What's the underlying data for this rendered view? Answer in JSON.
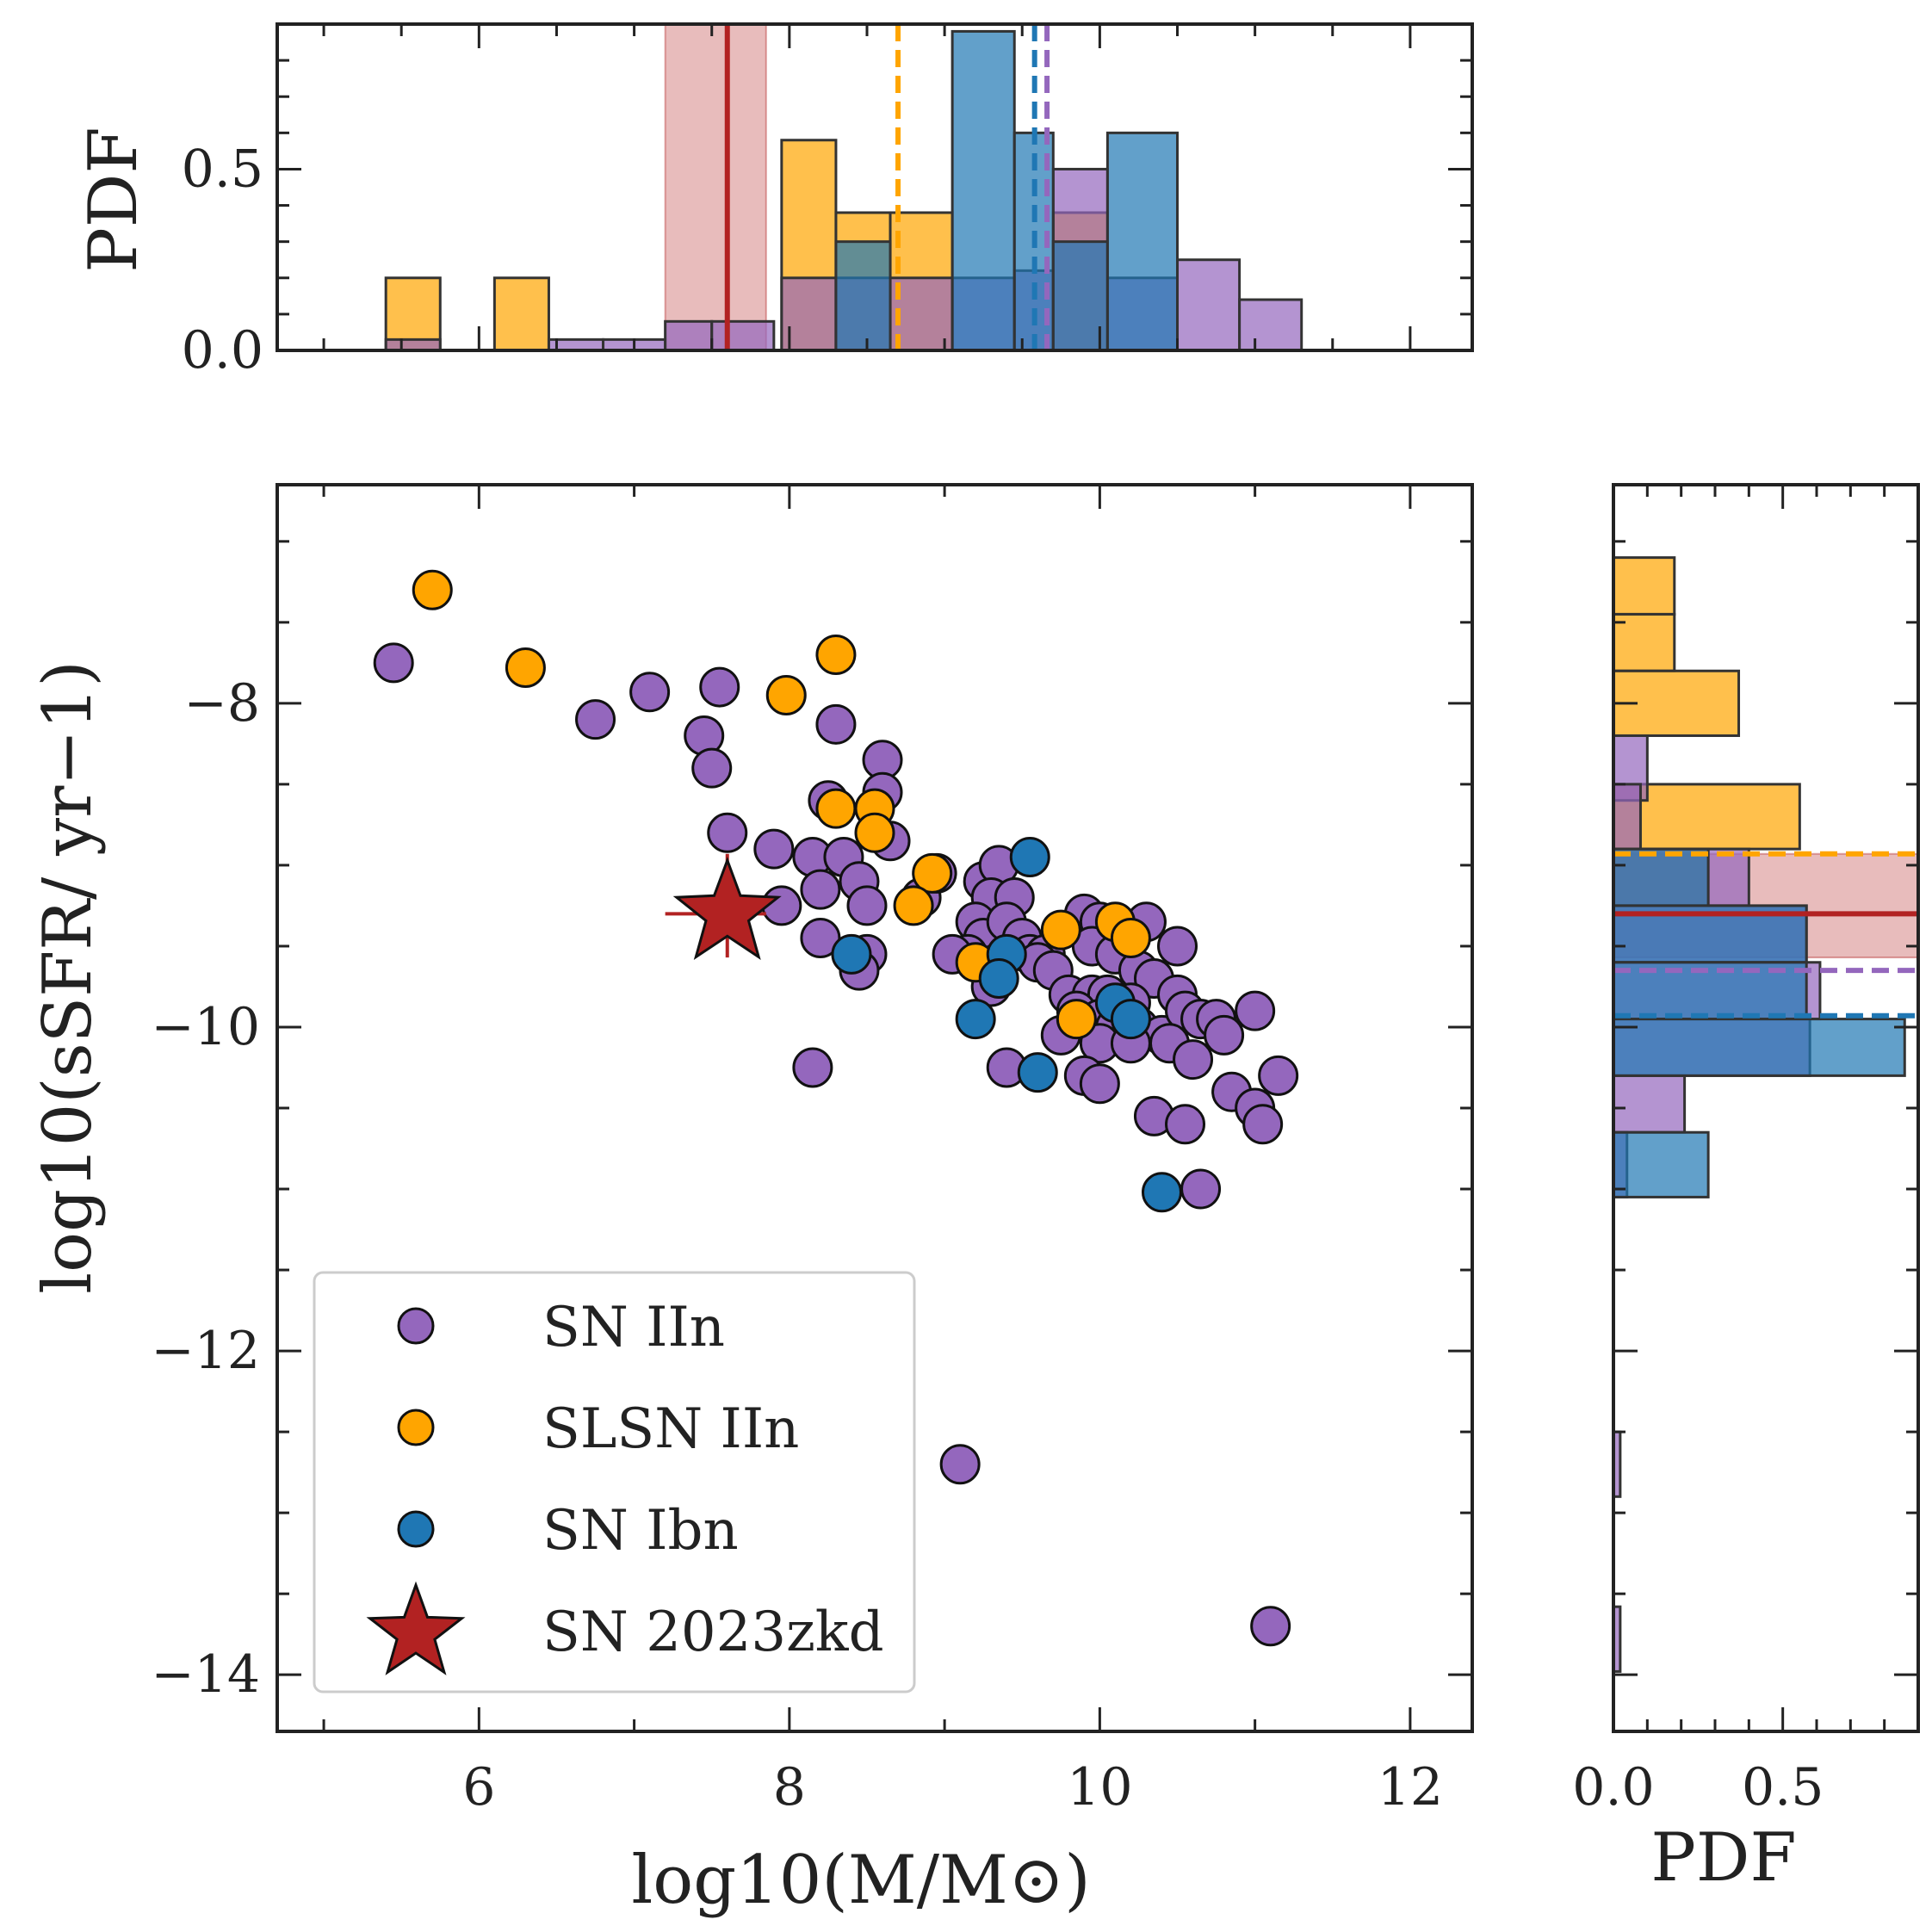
{
  "chart_data": {
    "type": "scatter",
    "title": "",
    "xlabel": "log10(M/M⊙)",
    "ylabel": "log10(sSFR/ yr−1)",
    "xlim": [
      4.7,
      12.4
    ],
    "ylim": [
      -14.35,
      -6.65
    ],
    "xticks": [
      6,
      8,
      10,
      12
    ],
    "xtick_labels": [
      "6",
      "8",
      "10",
      "12"
    ],
    "yticks": [
      -8,
      -10,
      -12,
      -14
    ],
    "ytick_labels": [
      "−8",
      "−10",
      "−12",
      "−14"
    ],
    "legend": {
      "placement": "lower-left",
      "entries": [
        "SN IIn",
        "SLSN IIn",
        "SN Ibn",
        "SN 2023zkd"
      ]
    },
    "colors": {
      "SN IIn": "#9467bd",
      "SLSN IIn": "#ffa500",
      "SN Ibn": "#1f77b4",
      "SN 2023zkd": "#b22222"
    },
    "series": [
      {
        "name": "SN IIn",
        "points": [
          [
            5.45,
            -7.75
          ],
          [
            6.75,
            -8.1
          ],
          [
            7.1,
            -7.93
          ],
          [
            7.45,
            -8.2
          ],
          [
            7.55,
            -7.9
          ],
          [
            7.5,
            -8.4
          ],
          [
            7.6,
            -8.8
          ],
          [
            8.3,
            -8.13
          ],
          [
            8.6,
            -8.35
          ],
          [
            8.6,
            -8.55
          ],
          [
            8.25,
            -8.6
          ],
          [
            8.65,
            -8.85
          ],
          [
            7.9,
            -8.9
          ],
          [
            8.15,
            -8.95
          ],
          [
            8.35,
            -8.95
          ],
          [
            8.2,
            -9.15
          ],
          [
            8.45,
            -9.1
          ],
          [
            8.5,
            -9.25
          ],
          [
            7.95,
            -9.25
          ],
          [
            8.2,
            -9.45
          ],
          [
            8.5,
            -9.55
          ],
          [
            8.45,
            -9.65
          ],
          [
            8.15,
            -10.25
          ],
          [
            8.85,
            -9.2
          ],
          [
            8.95,
            -9.05
          ],
          [
            9.25,
            -9.1
          ],
          [
            9.35,
            -9.0
          ],
          [
            9.3,
            -9.2
          ],
          [
            9.45,
            -9.2
          ],
          [
            9.2,
            -9.35
          ],
          [
            9.25,
            -9.45
          ],
          [
            9.4,
            -9.35
          ],
          [
            9.5,
            -9.45
          ],
          [
            9.55,
            -9.55
          ],
          [
            9.65,
            -9.55
          ],
          [
            9.15,
            -9.55
          ],
          [
            9.05,
            -9.55
          ],
          [
            9.3,
            -9.75
          ],
          [
            9.35,
            -9.6
          ],
          [
            9.6,
            -9.6
          ],
          [
            9.7,
            -9.65
          ],
          [
            9.9,
            -9.3
          ],
          [
            10.0,
            -9.35
          ],
          [
            10.15,
            -9.45
          ],
          [
            10.3,
            -9.35
          ],
          [
            10.5,
            -9.5
          ],
          [
            9.95,
            -9.5
          ],
          [
            10.1,
            -9.55
          ],
          [
            10.25,
            -9.65
          ],
          [
            10.35,
            -9.7
          ],
          [
            9.8,
            -9.8
          ],
          [
            9.95,
            -9.8
          ],
          [
            10.05,
            -9.8
          ],
          [
            10.2,
            -9.85
          ],
          [
            10.5,
            -9.8
          ],
          [
            9.85,
            -9.9
          ],
          [
            10.0,
            -9.95
          ],
          [
            10.1,
            -10.0
          ],
          [
            10.25,
            -10.0
          ],
          [
            10.4,
            -10.05
          ],
          [
            10.55,
            -9.9
          ],
          [
            10.65,
            -9.95
          ],
          [
            10.75,
            -9.95
          ],
          [
            10.8,
            -10.05
          ],
          [
            9.75,
            -10.05
          ],
          [
            10.0,
            -10.1
          ],
          [
            10.2,
            -10.1
          ],
          [
            10.45,
            -10.1
          ],
          [
            10.6,
            -10.2
          ],
          [
            9.9,
            -10.3
          ],
          [
            10.0,
            -10.35
          ],
          [
            9.4,
            -10.25
          ],
          [
            10.35,
            -10.55
          ],
          [
            10.55,
            -10.6
          ],
          [
            10.85,
            -10.4
          ],
          [
            11.0,
            -10.5
          ],
          [
            11.05,
            -10.6
          ],
          [
            11.15,
            -10.3
          ],
          [
            11.0,
            -9.9
          ],
          [
            10.65,
            -11.0
          ],
          [
            9.1,
            -12.7
          ],
          [
            11.1,
            -13.7
          ]
        ]
      },
      {
        "name": "SLSN IIn",
        "points": [
          [
            5.7,
            -7.3
          ],
          [
            6.3,
            -7.78
          ],
          [
            7.98,
            -7.95
          ],
          [
            8.3,
            -7.7
          ],
          [
            8.3,
            -8.65
          ],
          [
            8.55,
            -8.65
          ],
          [
            8.55,
            -8.8
          ],
          [
            8.92,
            -9.05
          ],
          [
            8.8,
            -9.25
          ],
          [
            9.75,
            -9.4
          ],
          [
            10.1,
            -9.35
          ],
          [
            10.2,
            -9.45
          ],
          [
            9.2,
            -9.6
          ],
          [
            9.85,
            -9.95
          ]
        ]
      },
      {
        "name": "SN Ibn",
        "points": [
          [
            8.4,
            -9.55
          ],
          [
            9.55,
            -8.95
          ],
          [
            9.4,
            -9.55
          ],
          [
            9.35,
            -9.7
          ],
          [
            9.2,
            -9.95
          ],
          [
            9.6,
            -10.28
          ],
          [
            10.1,
            -9.85
          ],
          [
            10.2,
            -9.95
          ],
          [
            10.4,
            -11.02
          ]
        ]
      },
      {
        "name": "SN 2023zkd",
        "marker": "star",
        "points": [
          [
            7.6,
            -9.3
          ]
        ],
        "xerr": [
          [
            7.2,
            7.85
          ]
        ],
        "yerr": [
          [
            -9.57,
            -8.93
          ]
        ]
      }
    ],
    "top_histogram": {
      "ylabel": "PDF",
      "ylim": [
        0,
        0.9
      ],
      "yticks": [
        0.0,
        0.5
      ],
      "ytick_labels": [
        "0.0",
        "0.5"
      ],
      "bars": [
        {
          "series": "SLSN IIn",
          "bins": [
            [
              5.4,
              5.75,
              0.2
            ],
            [
              6.1,
              6.45,
              0.2
            ],
            [
              7.95,
              8.3,
              0.58
            ],
            [
              8.3,
              8.65,
              0.38
            ],
            [
              8.65,
              9.05,
              0.38
            ],
            [
              9.7,
              10.05,
              0.38
            ]
          ]
        },
        {
          "series": "SN IIn",
          "bins": [
            [
              5.4,
              5.75,
              0.03
            ],
            [
              6.45,
              6.8,
              0.03
            ],
            [
              6.8,
              7.2,
              0.03
            ],
            [
              7.2,
              7.5,
              0.08
            ],
            [
              7.5,
              7.9,
              0.08
            ],
            [
              7.95,
              8.3,
              0.2
            ],
            [
              8.3,
              8.65,
              0.2
            ],
            [
              8.65,
              9.05,
              0.2
            ],
            [
              9.05,
              9.45,
              0.2
            ],
            [
              9.45,
              9.7,
              0.22
            ],
            [
              9.7,
              10.05,
              0.5
            ],
            [
              10.05,
              10.5,
              0.2
            ],
            [
              10.5,
              10.9,
              0.25
            ],
            [
              10.9,
              11.3,
              0.14
            ]
          ]
        },
        {
          "series": "SN Ibn",
          "bins": [
            [
              8.3,
              8.65,
              0.3
            ],
            [
              9.05,
              9.45,
              0.88
            ],
            [
              9.45,
              9.7,
              0.6
            ],
            [
              9.7,
              10.05,
              0.3
            ],
            [
              10.05,
              10.5,
              0.6
            ]
          ]
        }
      ],
      "vlines": [
        {
          "series": "SN 2023zkd",
          "x": 7.6,
          "style": "solid",
          "band": [
            7.2,
            7.85
          ]
        },
        {
          "series": "SLSN IIn",
          "x": 8.7,
          "style": "dashed"
        },
        {
          "series": "SN Ibn",
          "x": 9.58,
          "style": "dashed"
        },
        {
          "series": "SN IIn",
          "x": 9.66,
          "style": "dashed"
        }
      ]
    },
    "right_histogram": {
      "xlabel": "PDF",
      "xlim": [
        0,
        0.9
      ],
      "xticks": [
        0.0,
        0.5
      ],
      "xtick_labels": [
        "0.0",
        "0.5"
      ],
      "bars": [
        {
          "series": "SLSN IIn",
          "bins": [
            [
              -7.45,
              -7.1,
              0.18
            ],
            [
              -7.8,
              -7.45,
              0.18
            ],
            [
              -8.2,
              -7.8,
              0.37
            ],
            [
              -8.9,
              -8.5,
              0.55
            ],
            [
              -9.25,
              -8.9,
              0.28
            ]
          ]
        },
        {
          "series": "SN IIn",
          "bins": [
            [
              -8.6,
              -8.2,
              0.1
            ],
            [
              -8.9,
              -8.5,
              0.08
            ],
            [
              -9.25,
              -8.9,
              0.4
            ],
            [
              -9.6,
              -9.25,
              0.57
            ],
            [
              -9.95,
              -9.6,
              0.61
            ],
            [
              -10.3,
              -9.95,
              0.58
            ],
            [
              -10.65,
              -10.3,
              0.21
            ],
            [
              -11.05,
              -10.65,
              0.04
            ],
            [
              -12.9,
              -12.5,
              0.02
            ],
            [
              -13.98,
              -13.58,
              0.02
            ]
          ]
        },
        {
          "series": "SN Ibn",
          "bins": [
            [
              -9.25,
              -8.9,
              0.28
            ],
            [
              -9.6,
              -9.25,
              0.57
            ],
            [
              -9.95,
              -9.6,
              0.57
            ],
            [
              -10.3,
              -9.95,
              0.86
            ],
            [
              -11.05,
              -10.65,
              0.28
            ]
          ]
        }
      ],
      "hlines": [
        {
          "series": "SN 2023zkd",
          "y": -9.3,
          "style": "solid",
          "band": [
            -9.57,
            -8.93
          ]
        },
        {
          "series": "SLSN IIn",
          "y": -8.93,
          "style": "dashed"
        },
        {
          "series": "SN IIn",
          "y": -9.65,
          "style": "dashed"
        },
        {
          "series": "SN Ibn",
          "y": -9.93,
          "style": "dashed"
        }
      ]
    }
  }
}
